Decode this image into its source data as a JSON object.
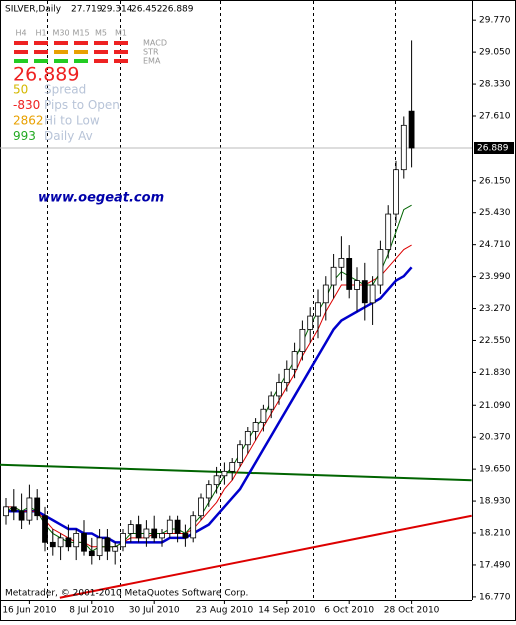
{
  "chart_data": {
    "type": "candlestick",
    "title": "SILVER,Daily",
    "categories": [
      null,
      null,
      null,
      "16 Jun 2010",
      null,
      null,
      null,
      null,
      null,
      null,
      null,
      "8 Jul 2010",
      null,
      null,
      null,
      null,
      null,
      null,
      null,
      "30 Jul 2010",
      null,
      null,
      null,
      null,
      null,
      null,
      null,
      null,
      "23 Aug 2010",
      null,
      null,
      null,
      null,
      null,
      null,
      null,
      "14 Sep 2010",
      null,
      null,
      null,
      null,
      null,
      null,
      null,
      "6 Oct 2010",
      null,
      null,
      null,
      null,
      null,
      null,
      null,
      "28 Oct 2010"
    ],
    "ohlc": {
      "open": [
        18.6,
        18.8,
        18.7,
        18.5,
        19.0,
        18.6,
        18.0,
        17.9,
        18.1,
        17.9,
        18.2,
        17.8,
        17.7,
        18.1,
        17.8,
        17.9,
        18.2,
        18.4,
        18.1,
        18.3,
        18.1,
        18.2,
        18.5,
        18.2,
        18.1,
        18.6,
        19.0,
        19.3,
        19.5,
        19.6,
        19.8,
        20.2,
        20.5,
        20.7,
        21.0,
        21.3,
        21.6,
        21.9,
        22.3,
        22.8,
        23.1,
        23.4,
        23.8,
        24.2,
        24.4,
        23.7,
        23.9,
        23.4,
        23.8,
        24.6,
        25.4,
        26.4,
        27.719
      ],
      "high": [
        19.0,
        19.2,
        19.1,
        19.3,
        19.2,
        18.8,
        18.3,
        18.2,
        18.4,
        18.3,
        18.5,
        18.1,
        18.3,
        18.3,
        18.0,
        18.3,
        18.5,
        18.6,
        18.5,
        18.6,
        18.3,
        18.6,
        18.6,
        18.4,
        18.7,
        19.1,
        19.4,
        19.7,
        19.8,
        19.9,
        20.3,
        20.6,
        20.8,
        21.1,
        21.4,
        21.8,
        22.1,
        22.5,
        23.0,
        23.3,
        23.7,
        24.0,
        24.5,
        24.9,
        24.7,
        24.2,
        24.3,
        24.0,
        24.8,
        25.6,
        26.6,
        27.6,
        29.314
      ],
      "low": [
        18.4,
        18.5,
        18.3,
        18.4,
        18.5,
        17.8,
        17.7,
        17.6,
        17.8,
        17.6,
        17.7,
        17.5,
        17.6,
        17.6,
        17.5,
        17.8,
        18.0,
        18.0,
        17.9,
        18.0,
        17.9,
        18.1,
        18.0,
        17.9,
        18.0,
        18.5,
        18.8,
        19.1,
        19.3,
        19.4,
        19.7,
        20.0,
        20.3,
        20.5,
        20.8,
        21.1,
        21.4,
        21.7,
        22.1,
        22.5,
        22.6,
        23.0,
        23.5,
        23.9,
        23.5,
        23.2,
        23.0,
        22.9,
        23.6,
        24.4,
        25.2,
        26.2,
        26.452
      ],
      "close": [
        18.8,
        18.7,
        18.5,
        19.0,
        18.6,
        18.0,
        17.9,
        18.1,
        17.9,
        18.2,
        17.8,
        17.7,
        18.1,
        17.8,
        17.9,
        18.2,
        18.4,
        18.1,
        18.3,
        18.1,
        18.2,
        18.5,
        18.2,
        18.1,
        18.6,
        19.0,
        19.3,
        19.5,
        19.6,
        19.8,
        20.2,
        20.5,
        20.7,
        21.0,
        21.3,
        21.6,
        21.9,
        22.3,
        22.8,
        23.1,
        23.4,
        23.8,
        24.2,
        24.4,
        23.7,
        23.9,
        23.4,
        23.8,
        24.6,
        25.4,
        26.4,
        27.4,
        26.889
      ]
    },
    "moving_averages": [
      {
        "color": "#0000cc",
        "values": [
          18.7,
          18.7,
          18.7,
          18.7,
          18.7,
          18.6,
          18.5,
          18.4,
          18.3,
          18.3,
          18.2,
          18.2,
          18.1,
          18.1,
          18.0,
          18.0,
          18.0,
          18.0,
          18.0,
          18.0,
          18.0,
          18.1,
          18.1,
          18.1,
          18.2,
          18.3,
          18.4,
          18.6,
          18.8,
          19.0,
          19.2,
          19.5,
          19.8,
          20.1,
          20.4,
          20.7,
          21.0,
          21.3,
          21.6,
          21.9,
          22.2,
          22.5,
          22.8,
          23.0,
          23.1,
          23.2,
          23.3,
          23.4,
          23.5,
          23.7,
          23.9,
          24.0,
          24.2
        ]
      },
      {
        "color": "#dd0000",
        "values": [
          18.8,
          18.8,
          18.7,
          18.7,
          18.7,
          18.5,
          18.3,
          18.2,
          18.1,
          18.0,
          18.0,
          17.9,
          17.9,
          17.9,
          17.9,
          18.0,
          18.1,
          18.1,
          18.1,
          18.2,
          18.2,
          18.2,
          18.2,
          18.2,
          18.3,
          18.5,
          18.7,
          18.9,
          19.2,
          19.4,
          19.7,
          20.0,
          20.3,
          20.6,
          20.9,
          21.2,
          21.5,
          21.8,
          22.2,
          22.5,
          22.8,
          23.2,
          23.5,
          23.8,
          23.8,
          23.8,
          23.8,
          23.9,
          24.0,
          24.2,
          24.4,
          24.6,
          24.7
        ]
      },
      {
        "color": "#006400",
        "values": [
          18.7,
          18.8,
          18.7,
          18.8,
          18.7,
          18.4,
          18.2,
          18.1,
          18.0,
          18.0,
          18.0,
          17.8,
          17.9,
          17.9,
          17.9,
          18.0,
          18.2,
          18.2,
          18.2,
          18.2,
          18.2,
          18.3,
          18.3,
          18.2,
          18.4,
          18.6,
          18.9,
          19.2,
          19.5,
          19.7,
          20.0,
          20.3,
          20.6,
          20.8,
          21.2,
          21.5,
          21.8,
          22.1,
          22.5,
          22.9,
          23.2,
          23.5,
          23.9,
          24.1,
          24.0,
          23.9,
          23.8,
          23.8,
          24.1,
          24.5,
          25.0,
          25.5,
          25.6
        ]
      }
    ],
    "trendlines": [
      {
        "color": "#006400",
        "x": [
          -0.8,
          59.7
        ],
        "values": [
          19.75,
          19.4
        ]
      },
      {
        "color": "#dd0000",
        "x": [
          6.9,
          59.7
        ],
        "values": [
          16.75,
          18.6
        ]
      }
    ],
    "ylim": [
      16.7,
      30.18
    ],
    "yticks": [
      {
        "value": 29.77,
        "label": "29.770"
      },
      {
        "value": 29.05,
        "label": "29.050"
      },
      {
        "value": 28.33,
        "label": "28.330"
      },
      {
        "value": 27.61,
        "label": "27.610"
      },
      {
        "value": 26.15,
        "label": "26.150"
      },
      {
        "value": 25.43,
        "label": "25.430"
      },
      {
        "value": 24.71,
        "label": "24.710"
      },
      {
        "value": 23.99,
        "label": "23.990"
      },
      {
        "value": 23.27,
        "label": "23.270"
      },
      {
        "value": 22.55,
        "label": "22.550"
      },
      {
        "value": 21.83,
        "label": "21.830"
      },
      {
        "value": 21.09,
        "label": "21.090"
      },
      {
        "value": 20.37,
        "label": "20.370"
      },
      {
        "value": 19.65,
        "label": "19.650"
      },
      {
        "value": 18.93,
        "label": "18.930"
      },
      {
        "value": 18.21,
        "label": "18.210"
      },
      {
        "value": 17.49,
        "label": "17.490"
      },
      {
        "value": 16.77,
        "label": "16.770"
      }
    ],
    "bid": 26.889,
    "grid": false
  },
  "panel": {
    "timeframes": [
      "H4",
      "H1",
      "M30",
      "M15",
      "M5",
      "M1"
    ],
    "indicators": [
      "MACD",
      "STR",
      "EMA"
    ],
    "price": "26.889",
    "stats": [
      {
        "value": "50",
        "label": "Spread",
        "color": "#d4b800"
      },
      {
        "value": "-830",
        "label": "Pips to Open",
        "color": "#ee2222"
      },
      {
        "value": "2862",
        "label": "Hi to Low",
        "color": "#e8a000"
      },
      {
        "value": "993",
        "label": "Daily Av",
        "color": "#22aa22"
      }
    ]
  },
  "watermark": "www.oegeat.com",
  "footer": "Metatrader, © 2001-2010 MetaQuotes Software Corp."
}
